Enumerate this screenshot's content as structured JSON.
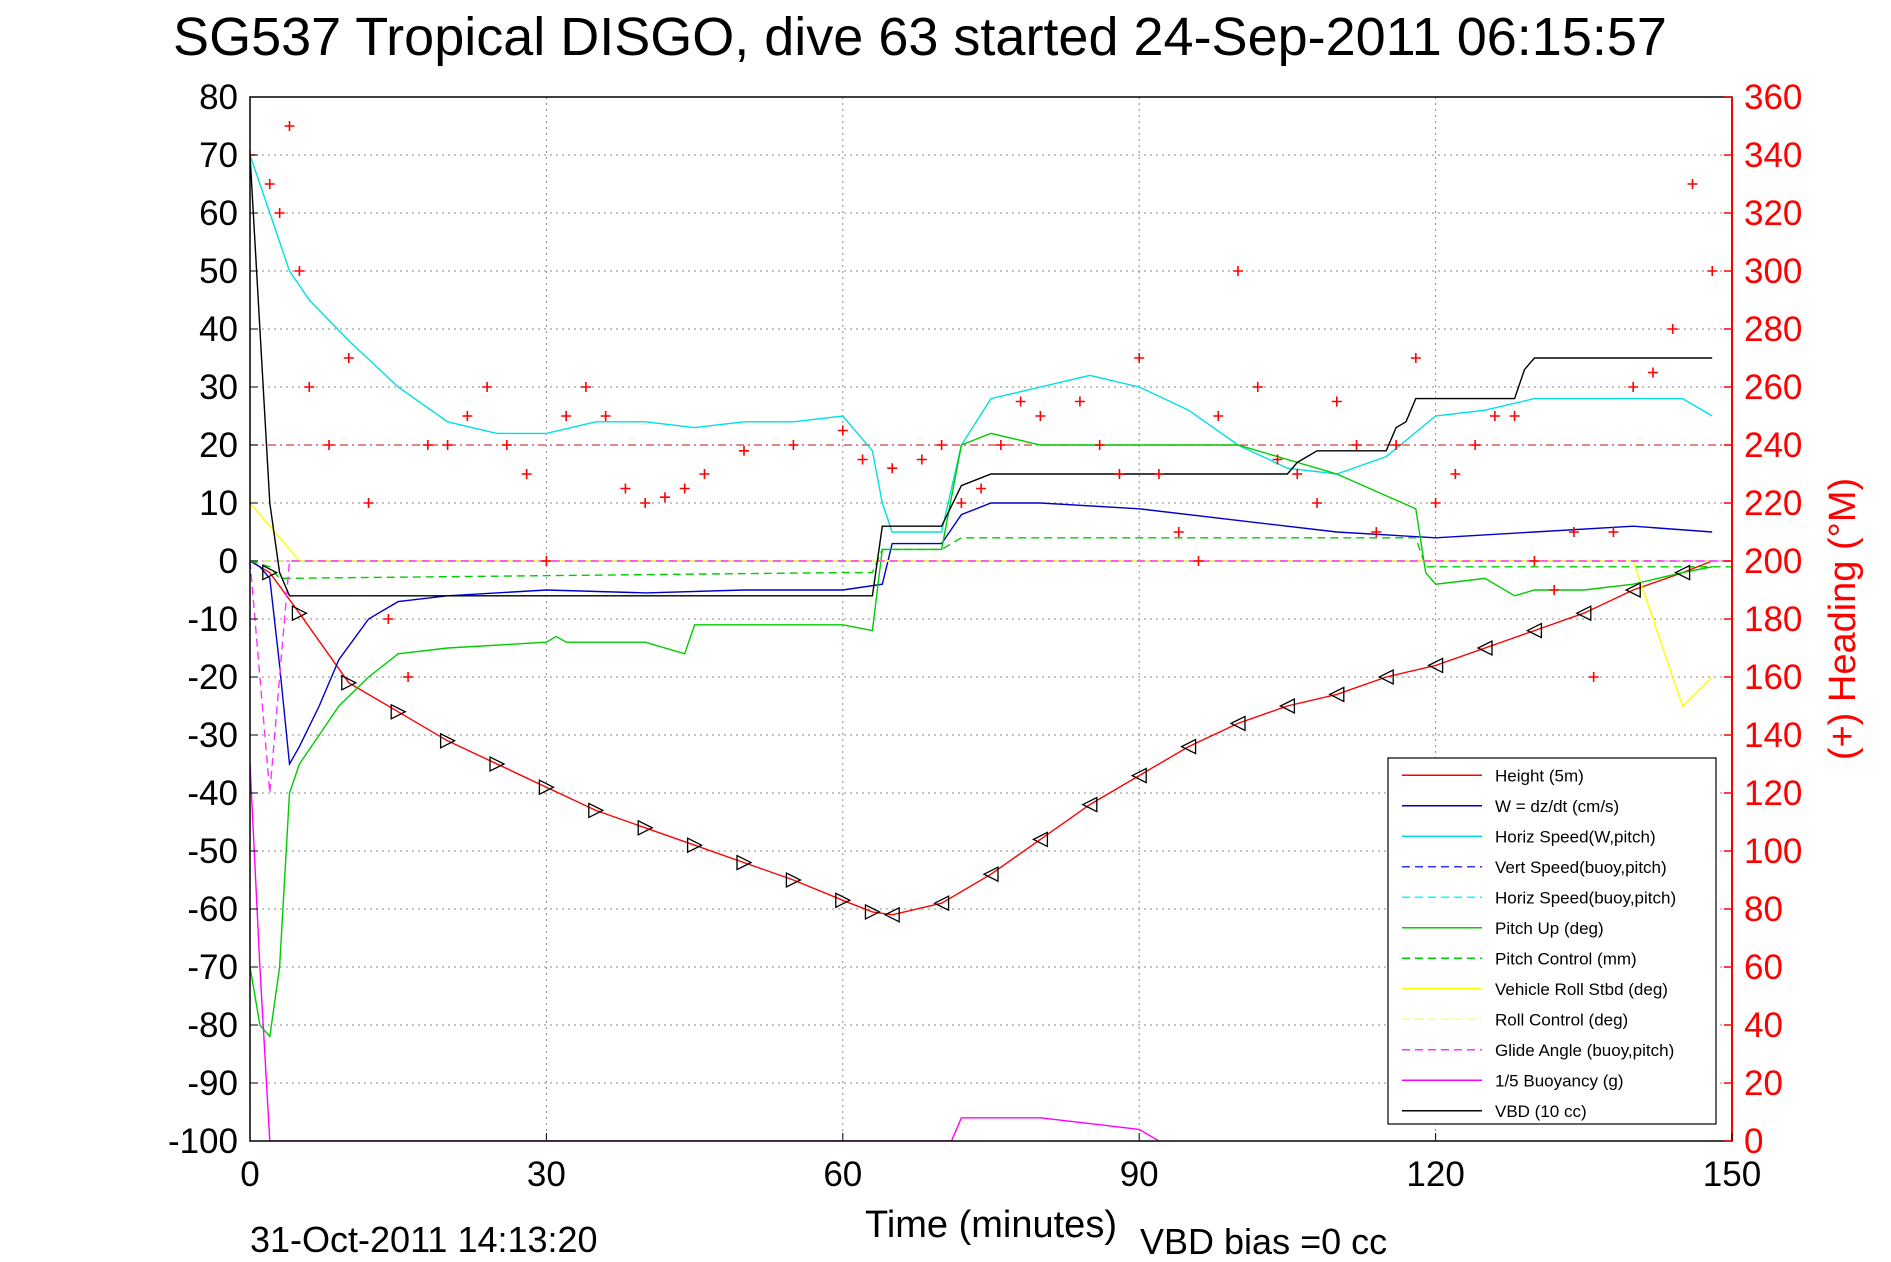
{
  "chart_data": {
    "type": "line",
    "title": "SG537 Tropical DISGO, dive 63 started 24-Sep-2011 06:15:57",
    "xlabel": "Time (minutes)",
    "ylabel_right": "(+) Heading (°M)",
    "xlim": [
      0,
      150
    ],
    "ylim": [
      -100,
      80
    ],
    "ylim_right": [
      0,
      360
    ],
    "xticks": [
      "0",
      "30",
      "60",
      "90",
      "120",
      "150"
    ],
    "yticks": [
      "80",
      "70",
      "60",
      "50",
      "40",
      "30",
      "20",
      "10",
      "0",
      "-10",
      "-20",
      "-30",
      "-40",
      "-50",
      "-60",
      "-70",
      "-80",
      "-90",
      "-100"
    ],
    "yticks_right": [
      "360",
      "340",
      "320",
      "300",
      "280",
      "260",
      "240",
      "220",
      "200",
      "180",
      "160",
      "140",
      "120",
      "100",
      "80",
      "60",
      "40",
      "20",
      "0"
    ],
    "grid": true,
    "legend_position": "bottom-right",
    "footer_date": "31-Oct-2011 14:13:20",
    "footer_bias": "VBD bias =0 cc",
    "colors": {
      "axis_right": "#ff0000",
      "grid": "#888888",
      "ref_line_20": "#d04040",
      "ref_line_0": "#ff66ff"
    },
    "series": [
      {
        "name": "Height (5m)",
        "color": "#ff0000",
        "dash": "solid",
        "x": [
          0,
          2,
          5,
          10,
          15,
          20,
          25,
          30,
          35,
          40,
          45,
          50,
          55,
          60,
          63,
          65,
          70,
          75,
          80,
          85,
          90,
          95,
          100,
          105,
          110,
          115,
          120,
          125,
          130,
          135,
          140,
          145,
          148
        ],
        "y": [
          0,
          -2,
          -9,
          -21,
          -26,
          -31,
          -35,
          -39,
          -43,
          -46,
          -49,
          -52,
          -55,
          -58.5,
          -60.5,
          -61,
          -59,
          -54,
          -48,
          -42,
          -37,
          -32,
          -28,
          -25,
          -23,
          -20,
          -18,
          -15,
          -12,
          -9,
          -5,
          -2,
          0
        ]
      },
      {
        "name": "W = dz/dt (cm/s)",
        "color": "#0000cc",
        "dash": "solid",
        "x": [
          0,
          1,
          2,
          3,
          4,
          5,
          7,
          9,
          12,
          15,
          20,
          30,
          40,
          50,
          60,
          64,
          65,
          70,
          72,
          75,
          80,
          90,
          100,
          110,
          120,
          130,
          140,
          148
        ],
        "y": [
          0,
          -1,
          -3,
          -18,
          -35,
          -32,
          -25,
          -17,
          -10,
          -7,
          -6,
          -5,
          -5.5,
          -5,
          -5,
          -4,
          3,
          3,
          8,
          10,
          10,
          9,
          7,
          5,
          4,
          5,
          6,
          5
        ]
      },
      {
        "name": "Horiz Speed(W,pitch)",
        "color": "#00e0e0",
        "dash": "solid",
        "x": [
          0,
          2,
          4,
          6,
          10,
          15,
          20,
          25,
          30,
          35,
          40,
          45,
          50,
          55,
          60,
          63,
          64,
          65,
          70,
          72,
          75,
          80,
          85,
          90,
          95,
          100,
          105,
          110,
          115,
          120,
          125,
          130,
          135,
          140,
          145,
          148
        ],
        "y": [
          70,
          60,
          50,
          45,
          38,
          30,
          24,
          22,
          22,
          24,
          24,
          23,
          24,
          24,
          25,
          19,
          10,
          5,
          5,
          20,
          28,
          30,
          32,
          30,
          26,
          20,
          16,
          15,
          18,
          25,
          26,
          28,
          28,
          28,
          28,
          25
        ]
      },
      {
        "name": "Vert Speed(buoy,pitch)",
        "color": "#3333ff",
        "dash": "dashed",
        "x": [
          0,
          150
        ],
        "y": [
          0,
          0
        ]
      },
      {
        "name": "Horiz Speed(buoy,pitch)",
        "color": "#00ffff",
        "dash": "dashed",
        "x": [
          0,
          150
        ],
        "y": [
          0,
          0
        ]
      },
      {
        "name": "Pitch Up (deg)",
        "color": "#00cc00",
        "dash": "solid",
        "x": [
          0,
          1,
          2,
          3,
          4,
          5,
          7,
          9,
          12,
          15,
          20,
          30,
          31,
          32,
          40,
          44,
          45,
          50,
          60,
          63,
          64,
          70,
          72,
          75,
          80,
          90,
          100,
          110,
          118,
          119,
          120,
          125,
          128,
          130,
          135,
          140,
          145,
          148
        ],
        "y": [
          -70,
          -80,
          -82,
          -70,
          -40,
          -35,
          -30,
          -25,
          -20,
          -16,
          -15,
          -14,
          -13,
          -14,
          -14,
          -16,
          -11,
          -11,
          -11,
          -12,
          2,
          2,
          20,
          22,
          20,
          20,
          20,
          15,
          9,
          -2,
          -4,
          -3,
          -6,
          -5,
          -5,
          -4,
          -2,
          -1
        ]
      },
      {
        "name": "Pitch Control (mm)",
        "color": "#00cc00",
        "dash": "dashed",
        "x": [
          0,
          2,
          3,
          60,
          63,
          64,
          70,
          72,
          100,
          118,
          119,
          150
        ],
        "y": [
          0,
          -1,
          -3,
          -2,
          -2,
          2,
          2,
          4,
          4,
          4,
          -1,
          -1
        ]
      },
      {
        "name": "Vehicle Roll Stbd (deg)",
        "color": "#ffff00",
        "dash": "solid",
        "x": [
          0,
          5,
          10,
          20,
          30,
          40,
          50,
          60,
          70,
          80,
          90,
          100,
          110,
          120,
          130,
          140,
          145,
          148
        ],
        "y": [
          10,
          0,
          0,
          0,
          0,
          0,
          0,
          0,
          0,
          0,
          0,
          0,
          0,
          0,
          0,
          0,
          -25,
          -20
        ]
      },
      {
        "name": "Roll Control (deg)",
        "color": "#ffff66",
        "dash": "dashed",
        "x": [
          0,
          150
        ],
        "y": [
          0,
          0
        ]
      },
      {
        "name": "Glide Angle (buoy,pitch)",
        "color": "#ff33ff",
        "dash": "dashed",
        "x": [
          0,
          1,
          2,
          3,
          4,
          150
        ],
        "y": [
          0,
          -20,
          -40,
          -20,
          0,
          0
        ]
      },
      {
        "name": "1/5 Buoyancy (g)",
        "color": "#ff00ff",
        "dash": "solid",
        "x": [
          0,
          1,
          2,
          70,
          71,
          72,
          80,
          85,
          90,
          92
        ],
        "y": [
          -35,
          -70,
          -100,
          -100,
          -100,
          -96,
          -96,
          -97,
          -98,
          -100
        ]
      },
      {
        "name": "VBD (10 cc)",
        "color": "#000000",
        "dash": "solid",
        "x": [
          0,
          2,
          3,
          4,
          63,
          64,
          70,
          72,
          75,
          90,
          105,
          106,
          107,
          108,
          115,
          116,
          117,
          118,
          128,
          129,
          130,
          148
        ],
        "y": [
          70,
          10,
          -2,
          -6,
          -6,
          6,
          6,
          13,
          15,
          15,
          15,
          17,
          18,
          19,
          19,
          23,
          24,
          28,
          28,
          33,
          35,
          35
        ]
      },
      {
        "name": "Heading",
        "color": "#ff0000",
        "marker": "+",
        "axis": "right",
        "x": [
          0,
          2,
          3,
          4,
          5,
          6,
          8,
          10,
          12,
          14,
          16,
          18,
          20,
          22,
          24,
          26,
          28,
          30,
          32,
          34,
          36,
          38,
          40,
          42,
          44,
          46,
          50,
          55,
          60,
          62,
          65,
          68,
          70,
          72,
          74,
          76,
          78,
          80,
          84,
          86,
          88,
          90,
          92,
          94,
          96,
          98,
          100,
          102,
          104,
          106,
          108,
          110,
          112,
          114,
          116,
          118,
          120,
          122,
          124,
          126,
          128,
          130,
          132,
          134,
          136,
          138,
          140,
          142,
          144,
          146,
          148
        ],
        "y": [
          340,
          330,
          320,
          350,
          300,
          260,
          240,
          270,
          220,
          180,
          160,
          240,
          240,
          250,
          260,
          240,
          230,
          200,
          250,
          260,
          250,
          225,
          220,
          222,
          225,
          230,
          238,
          240,
          245,
          235,
          232,
          235,
          240,
          220,
          225,
          240,
          255,
          250,
          255,
          240,
          230,
          270,
          230,
          210,
          200,
          250,
          300,
          260,
          235,
          230,
          220,
          255,
          240,
          210,
          240,
          270,
          220,
          230,
          240,
          250,
          250,
          200,
          190,
          210,
          160,
          210,
          260,
          265,
          280,
          330,
          300
        ]
      }
    ]
  }
}
